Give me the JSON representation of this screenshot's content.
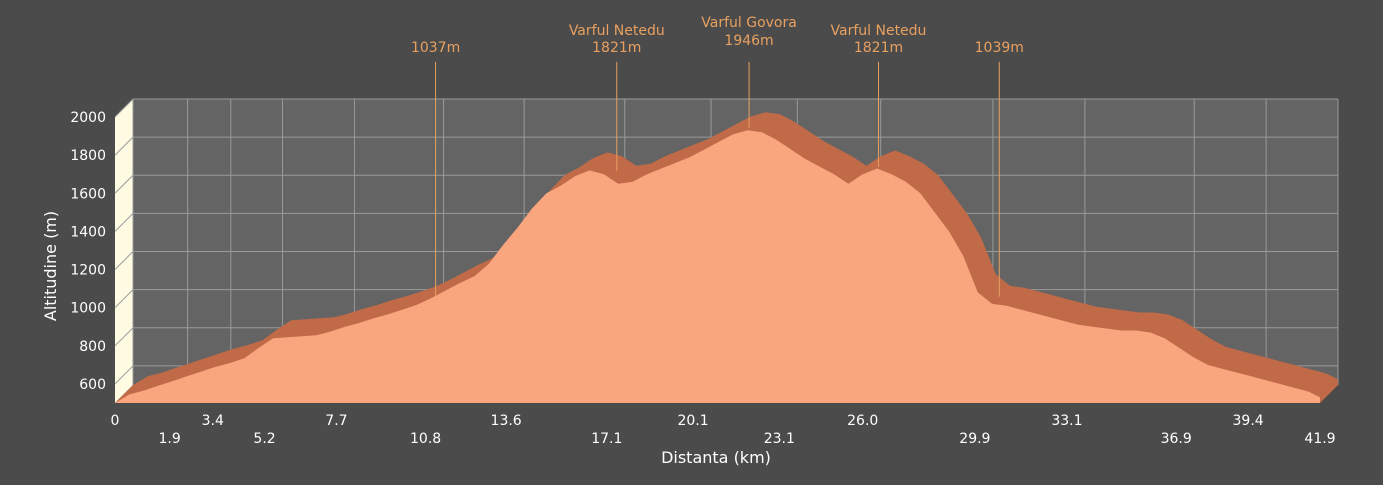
{
  "chart_data": {
    "type": "area",
    "title": "",
    "xlabel": "Distanta (km)",
    "ylabel": "Altitudine (m)",
    "xlim": [
      0,
      41.9
    ],
    "ylim": [
      500,
      2000
    ],
    "x_ticks": [
      "0",
      "1.9",
      "3.4",
      "5.2",
      "7.7",
      "10.8",
      "13.6",
      "17.1",
      "20.1",
      "23.1",
      "26.0",
      "29.9",
      "33.1",
      "36.9",
      "39.4",
      "41.9"
    ],
    "y_ticks": [
      600,
      800,
      1000,
      1200,
      1400,
      1600,
      1800,
      2000
    ],
    "grid": true,
    "colors": {
      "background": "#4b4b4b",
      "plot": "#646464",
      "area_front": "#f9a57e",
      "area_top": "#c06a48",
      "annotation": "#e8a060",
      "wall": "#fffbe3"
    },
    "series": [
      {
        "x": [
          0,
          0.5,
          1.0,
          1.5,
          2.0,
          2.5,
          3.0,
          3.5,
          4.0,
          4.5,
          5.0,
          5.5,
          6.0,
          6.5,
          7.0,
          7.5,
          8.0,
          8.5,
          9.0,
          9.5,
          10.0,
          10.5,
          11.0,
          11.5,
          12.0,
          12.5,
          13.0,
          13.5,
          14.0,
          14.5,
          15.0,
          15.5,
          16.0,
          16.5,
          17.0,
          17.5,
          18.0,
          18.5,
          19.0,
          19.5,
          20.0,
          20.5,
          21.0,
          21.5,
          22.0,
          22.5,
          23.0,
          23.5,
          24.0,
          24.5,
          25.0,
          25.5,
          26.0,
          26.5,
          27.0,
          27.5,
          28.0,
          28.5,
          29.0,
          29.5,
          30.0,
          30.5,
          31.0,
          31.5,
          32.0,
          32.5,
          33.0,
          33.5,
          34.0,
          34.5,
          35.0,
          35.5,
          36.0,
          36.5,
          37.0,
          37.5,
          38.0,
          38.5,
          39.0,
          39.5,
          40.0,
          40.5,
          41.0,
          41.5,
          41.9
        ],
        "y": [
          500,
          545,
          565,
          590,
          615,
          640,
          665,
          690,
          710,
          735,
          790,
          840,
          845,
          850,
          855,
          875,
          900,
          920,
          945,
          965,
          990,
          1015,
          1050,
          1090,
          1130,
          1165,
          1230,
          1330,
          1420,
          1520,
          1600,
          1640,
          1690,
          1720,
          1700,
          1650,
          1660,
          1700,
          1730,
          1760,
          1790,
          1830,
          1870,
          1910,
          1930,
          1920,
          1880,
          1830,
          1780,
          1740,
          1700,
          1650,
          1700,
          1730,
          1700,
          1660,
          1600,
          1500,
          1400,
          1270,
          1080,
          1020,
          1010,
          990,
          970,
          950,
          930,
          910,
          900,
          890,
          880,
          880,
          870,
          840,
          790,
          740,
          700,
          680,
          660,
          640,
          620,
          600,
          580,
          560,
          530
        ]
      }
    ],
    "annotations": [
      {
        "label": "",
        "value": "1037m",
        "x": 10.8,
        "y": 1037
      },
      {
        "label": "Varful Netedu",
        "value": "1821m",
        "x": 17.1,
        "y": 1821
      },
      {
        "label": "Varful Govora",
        "value": "1946m",
        "x": 21.7,
        "y": 1946
      },
      {
        "label": "Varful Netedu",
        "value": "1821m",
        "x": 26.2,
        "y": 1821
      },
      {
        "label": "",
        "value": "1039m",
        "x": 30.4,
        "y": 1039
      }
    ]
  }
}
